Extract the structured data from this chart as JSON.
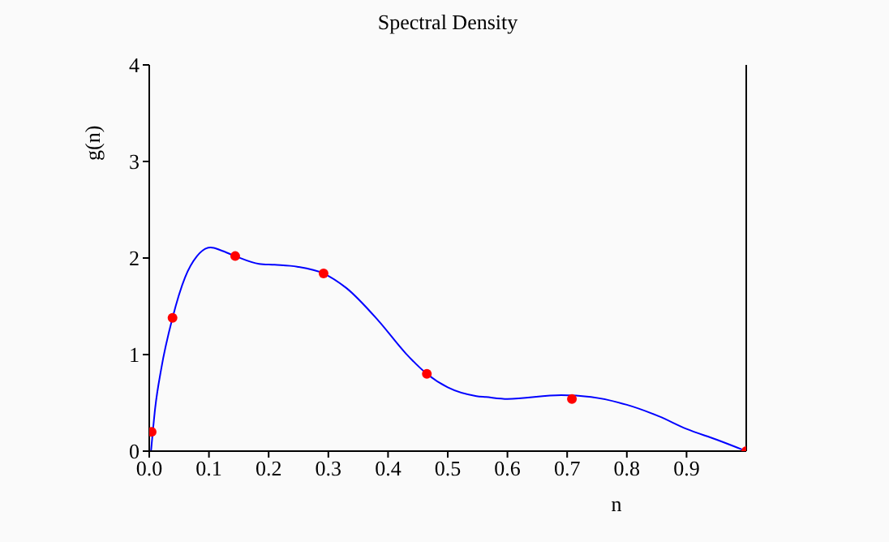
{
  "chart_data": {
    "type": "line",
    "title": "Spectral Density",
    "xlabel": "n",
    "ylabel": "g(n)",
    "series": [
      {
        "color": "#0000ff",
        "marker": "none",
        "x": [
          0.003,
          0.01,
          0.02,
          0.039,
          0.06,
          0.08,
          0.103,
          0.12,
          0.144,
          0.184,
          0.21,
          0.248,
          0.292,
          0.33,
          0.384,
          0.43,
          0.465,
          0.5,
          0.548,
          0.564,
          0.6,
          0.69,
          0.74,
          0.8,
          0.854,
          0.9,
          0.95,
          1.0
        ],
        "values": [
          0,
          0.45,
          0.85,
          1.38,
          1.8,
          2.02,
          2.11,
          2.08,
          2.02,
          1.94,
          1.93,
          1.91,
          1.84,
          1.69,
          1.35,
          1.01,
          0.8,
          0.66,
          0.57,
          0.56,
          0.54,
          0.58,
          0.56,
          0.48,
          0.36,
          0.23,
          0.12,
          0
        ]
      },
      {
        "type": "scatter",
        "color": "#ff0000",
        "marker": "circle",
        "x": [
          0.004,
          0.039,
          0.144,
          0.292,
          0.465,
          0.708,
          1.0
        ],
        "values": [
          0.2,
          1.38,
          2.02,
          1.84,
          0.8,
          0.54,
          0
        ]
      }
    ],
    "xlim": [
      0,
      1
    ],
    "xticks": [
      {
        "value": 0,
        "label": "0.0"
      },
      0.1,
      0.2,
      0.3,
      0.4,
      0.5,
      0.6,
      0.7,
      0.8,
      0.9
    ],
    "ylim": [
      0,
      4
    ],
    "yticks": [
      0,
      1,
      2,
      3,
      4
    ],
    "grid": false,
    "legend": false
  }
}
